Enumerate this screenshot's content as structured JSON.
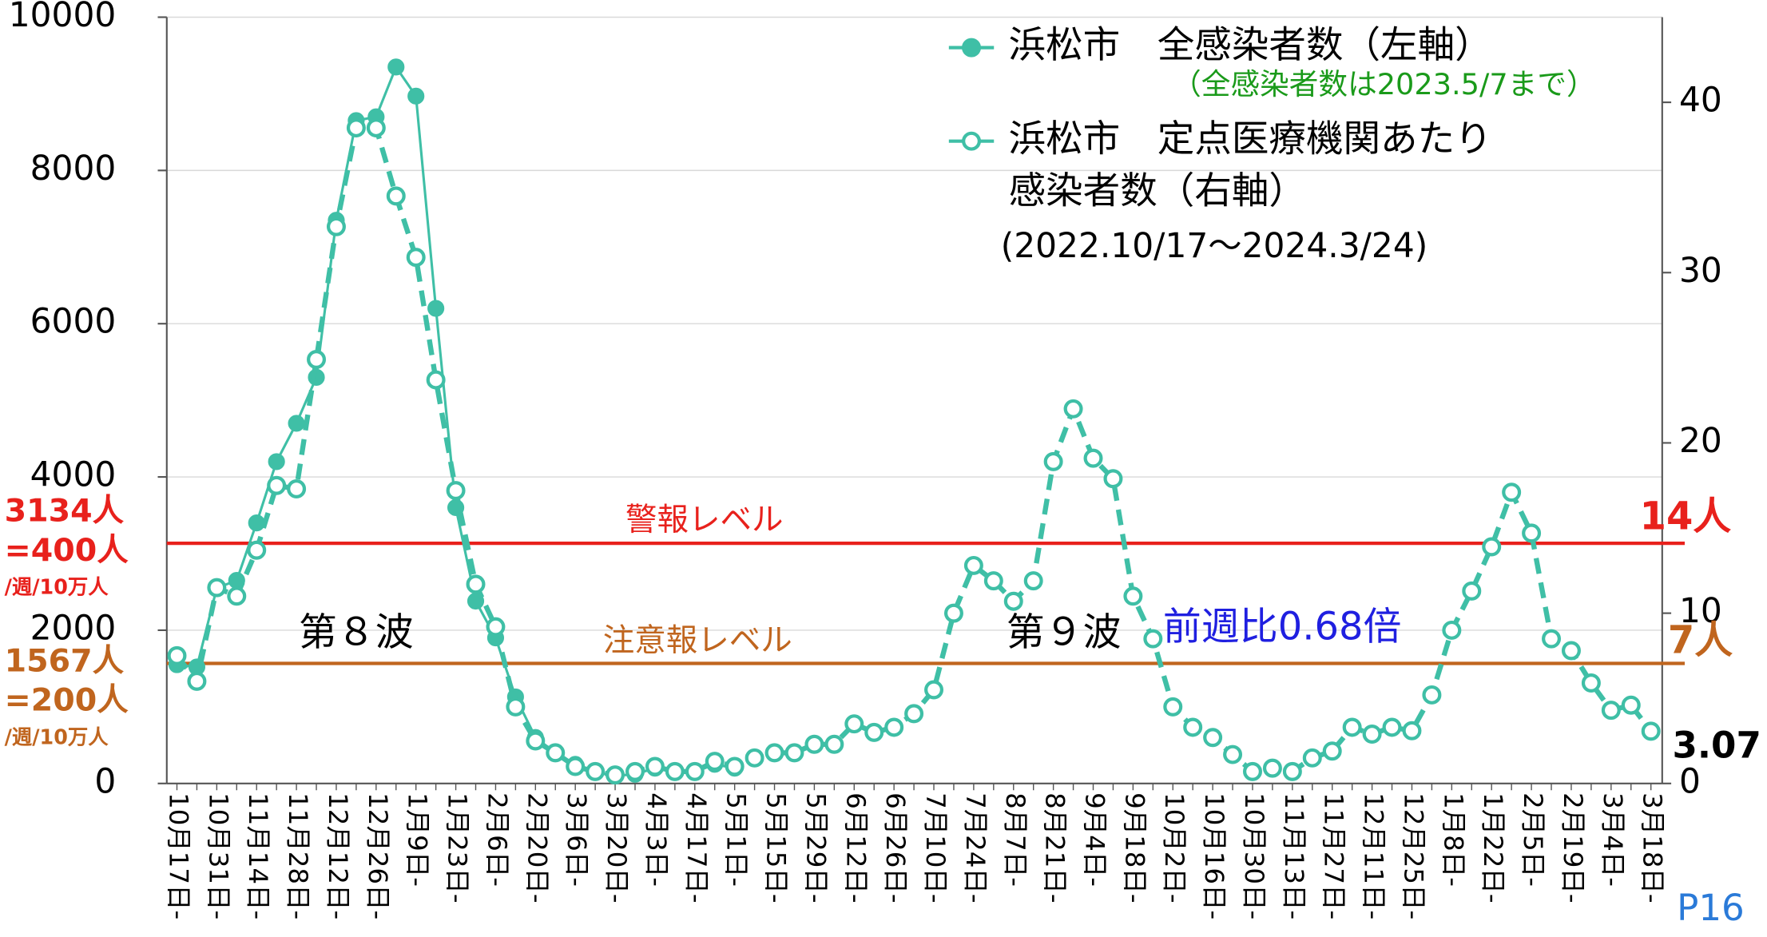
{
  "chart_data": {
    "type": "line",
    "categories": [
      "10月17日-",
      null,
      "10月31日-",
      null,
      "11月14日-",
      null,
      "11月28日-",
      null,
      "12月12日-",
      null,
      "12月26日-",
      null,
      "1月9日-",
      null,
      "1月23日-",
      null,
      "2月6日-",
      null,
      "2月20日-",
      null,
      "3月6日-",
      null,
      "3月20日-",
      null,
      "4月3日-",
      null,
      "4月17日-",
      null,
      "5月1日-",
      null,
      "5月15日-",
      null,
      "5月29日-",
      null,
      "6月12日-",
      null,
      "6月26日-",
      null,
      "7月10日-",
      null,
      "7月24日-",
      null,
      "8月7日-",
      null,
      "8月21日-",
      null,
      "9月4日-",
      null,
      "9月18日-",
      null,
      "10月2日-",
      null,
      "10月16日-",
      null,
      "10月30日-",
      null,
      "11月13日-",
      null,
      "11月27日-",
      null,
      "12月11日-",
      null,
      "12月25日-",
      null,
      "1月8日-",
      null,
      "1月22日-",
      null,
      "2月5日-",
      null,
      "2月19日-",
      null,
      "3月4日-",
      null,
      "3月18日-"
    ],
    "series": [
      {
        "name": "浜松市　全感染者数（左軸）",
        "color": "#3fbfa6",
        "marker": "filled",
        "values": [
          1550,
          1520,
          2550,
          2650,
          3400,
          4200,
          4700,
          5300,
          7350,
          8650,
          8700,
          9350,
          8970,
          6200,
          3600,
          2380,
          1900,
          1130,
          600,
          400,
          250,
          150,
          100,
          120,
          200,
          150,
          150,
          250,
          200,
          null,
          null,
          null,
          null,
          null,
          null,
          null,
          null,
          null,
          null,
          null,
          null,
          null,
          null,
          null,
          null,
          null,
          null,
          null,
          null,
          null,
          null,
          null,
          null,
          null,
          null,
          null,
          null,
          null,
          null,
          null,
          null,
          null,
          null,
          null,
          null,
          null,
          null,
          null,
          null,
          null,
          null,
          null,
          null,
          null,
          null
        ]
      },
      {
        "name": "浜松市　定点医療機関あたり感染者数（右軸）",
        "color": "#3fbfa6",
        "marker": "open",
        "axis": "y2",
        "values": [
          7.5,
          6.0,
          11.5,
          11.0,
          13.7,
          17.5,
          17.3,
          24.9,
          32.7,
          38.5,
          38.5,
          34.5,
          30.9,
          23.7,
          17.2,
          11.7,
          9.2,
          4.5,
          2.5,
          1.8,
          1.0,
          0.7,
          0.5,
          0.7,
          1.0,
          0.7,
          0.7,
          1.3,
          1.0,
          1.5,
          1.8,
          1.8,
          2.3,
          2.3,
          3.5,
          3.0,
          3.3,
          4.1,
          5.5,
          10.0,
          12.8,
          11.9,
          10.7,
          11.9,
          18.9,
          22.0,
          19.1,
          17.9,
          11.0,
          8.5,
          4.5,
          3.3,
          2.7,
          1.7,
          0.7,
          0.9,
          0.7,
          1.5,
          1.9,
          3.3,
          2.9,
          3.3,
          3.1,
          5.2,
          9.0,
          11.3,
          13.9,
          17.1,
          14.7,
          8.5,
          7.8,
          5.9,
          4.3,
          4.6,
          3.07
        ]
      }
    ],
    "ylim": [
      0,
      10000
    ],
    "yticks": [
      0,
      2000,
      4000,
      6000,
      8000,
      10000
    ],
    "y2lim": [
      0,
      45
    ],
    "y2ticks": [
      0,
      10,
      20,
      30,
      40
    ],
    "grid": true,
    "legend": "top-right",
    "legend_note": "（全感染者数は2023.5/7まで）",
    "period": "(2022.10/17～2024.3/24)",
    "reference_lines": [
      {
        "label": "警報レベル",
        "value": 3134,
        "color": "#e8211c",
        "right_label": "14人",
        "left_labels": [
          "3134人",
          "=400人",
          "/週/10万人"
        ]
      },
      {
        "label": "注意報レベル",
        "value": 1567,
        "color": "#c0651e",
        "right_label": "7人",
        "left_labels": [
          "1567人",
          "=200人",
          "/週/10万人"
        ]
      }
    ],
    "annotations": [
      "第８波",
      "第９波",
      "前週比0.68倍"
    ],
    "page_label": "P16"
  }
}
